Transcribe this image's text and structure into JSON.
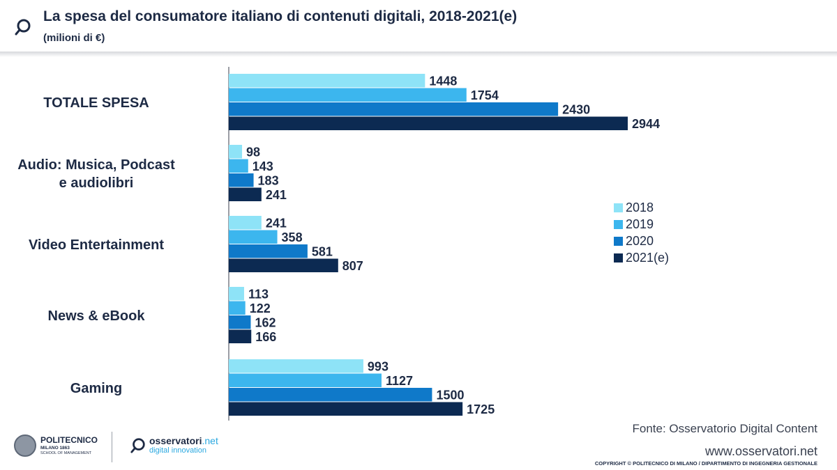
{
  "header": {
    "title": "La spesa del consumatore italiano di contenuti digitali, 2018-2021(e)",
    "subtitle": "(milioni di €)"
  },
  "chart_data": {
    "type": "bar",
    "orientation": "horizontal",
    "categories": [
      "TOTALE SPESA",
      "Audio: Musica, Podcast e audiolibri",
      "Video Entertainment",
      "News & eBook",
      "Gaming"
    ],
    "series": [
      {
        "name": "2018",
        "color": "#8ee3f7",
        "values": [
          1448,
          98,
          241,
          113,
          993
        ]
      },
      {
        "name": "2019",
        "color": "#3cb6ee",
        "values": [
          1754,
          143,
          358,
          122,
          1127
        ]
      },
      {
        "name": "2020",
        "color": "#0f79c9",
        "values": [
          2430,
          183,
          581,
          162,
          1500
        ]
      },
      {
        "name": "2021(e)",
        "color": "#0c2a52",
        "values": [
          2944,
          241,
          807,
          166,
          1725
        ]
      }
    ],
    "legend_position": "right",
    "grid": false,
    "xlim": [
      0,
      3200
    ]
  },
  "footer": {
    "source": "Fonte: Osservatorio Digital Content",
    "website": "www.osservatori.net",
    "copyright": "COPYRIGHT © POLITECNICO DI MILANO / DIPARTIMENTO DI INGEGNERIA GESTIONALE"
  },
  "logos": {
    "polimi_name": "POLITECNICO",
    "polimi_city": "MILANO 1863",
    "polimi_school": "SCHOOL OF MANAGEMENT",
    "oss_name": "osservatori",
    "oss_suffix": ".net",
    "oss_tagline": "digital innovation"
  },
  "icons": {
    "header": "magnifier-icon",
    "polimi": "university-seal-icon",
    "osservatori": "magnifier-icon"
  }
}
